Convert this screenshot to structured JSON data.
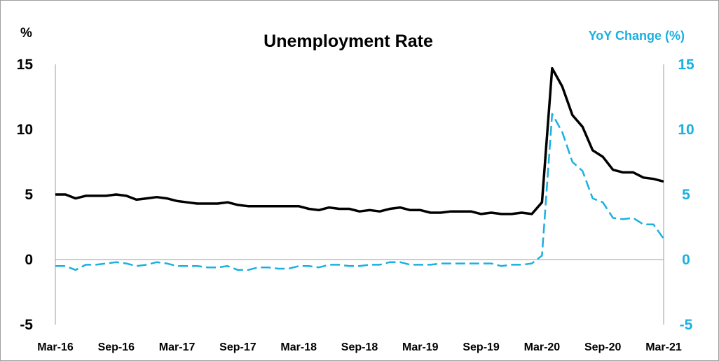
{
  "chart_data": {
    "type": "line",
    "title": "Unemployment Rate",
    "y_left_label": "%",
    "y_right_label": "YoY Change (%)",
    "ylim_left": [
      -5,
      15
    ],
    "ylim_right": [
      -5,
      15
    ],
    "y_ticks": [
      "15",
      "10",
      "5",
      "0",
      "-5"
    ],
    "x_tick_labels": [
      "Mar-16",
      "Sep-16",
      "Mar-17",
      "Sep-17",
      "Mar-18",
      "Sep-18",
      "Mar-19",
      "Sep-19",
      "Mar-20",
      "Sep-20",
      "Mar-21"
    ],
    "x": [
      "Mar-16",
      "Apr-16",
      "May-16",
      "Jun-16",
      "Jul-16",
      "Aug-16",
      "Sep-16",
      "Oct-16",
      "Nov-16",
      "Dec-16",
      "Jan-17",
      "Feb-17",
      "Mar-17",
      "Apr-17",
      "May-17",
      "Jun-17",
      "Jul-17",
      "Aug-17",
      "Sep-17",
      "Oct-17",
      "Nov-17",
      "Dec-17",
      "Jan-18",
      "Feb-18",
      "Mar-18",
      "Apr-18",
      "May-18",
      "Jun-18",
      "Jul-18",
      "Aug-18",
      "Sep-18",
      "Oct-18",
      "Nov-18",
      "Dec-18",
      "Jan-19",
      "Feb-19",
      "Mar-19",
      "Apr-19",
      "May-19",
      "Jun-19",
      "Jul-19",
      "Aug-19",
      "Sep-19",
      "Oct-19",
      "Nov-19",
      "Dec-19",
      "Jan-20",
      "Feb-20",
      "Mar-20",
      "Apr-20",
      "May-20",
      "Jun-20",
      "Jul-20",
      "Aug-20",
      "Sep-20",
      "Oct-20",
      "Nov-20",
      "Dec-20",
      "Jan-21",
      "Feb-21",
      "Mar-21"
    ],
    "series": [
      {
        "axis": "left",
        "color": "#000000",
        "style": "solid",
        "values": [
          5.0,
          5.0,
          4.7,
          4.9,
          4.9,
          4.9,
          5.0,
          4.9,
          4.6,
          4.7,
          4.8,
          4.7,
          4.5,
          4.4,
          4.3,
          4.3,
          4.3,
          4.4,
          4.2,
          4.1,
          4.1,
          4.1,
          4.1,
          4.1,
          4.1,
          3.9,
          3.8,
          4.0,
          3.9,
          3.9,
          3.7,
          3.8,
          3.7,
          3.9,
          4.0,
          3.8,
          3.8,
          3.6,
          3.6,
          3.7,
          3.7,
          3.7,
          3.5,
          3.6,
          3.5,
          3.5,
          3.6,
          3.5,
          4.4,
          14.7,
          13.3,
          11.1,
          10.2,
          8.4,
          7.9,
          6.9,
          6.7,
          6.7,
          6.3,
          6.2,
          6.0
        ]
      },
      {
        "axis": "right",
        "color": "#1ab0e0",
        "style": "dashed",
        "values": [
          -0.5,
          -0.5,
          -0.8,
          -0.4,
          -0.4,
          -0.3,
          -0.2,
          -0.3,
          -0.5,
          -0.4,
          -0.2,
          -0.3,
          -0.5,
          -0.5,
          -0.5,
          -0.6,
          -0.6,
          -0.5,
          -0.8,
          -0.8,
          -0.6,
          -0.6,
          -0.7,
          -0.7,
          -0.5,
          -0.5,
          -0.6,
          -0.4,
          -0.4,
          -0.5,
          -0.5,
          -0.4,
          -0.4,
          -0.2,
          -0.2,
          -0.4,
          -0.4,
          -0.4,
          -0.3,
          -0.3,
          -0.3,
          -0.3,
          -0.3,
          -0.3,
          -0.5,
          -0.4,
          -0.4,
          -0.3,
          0.3,
          11.2,
          9.8,
          7.5,
          6.8,
          4.7,
          4.4,
          3.2,
          3.1,
          3.2,
          2.7,
          2.7,
          1.6
        ]
      }
    ]
  }
}
